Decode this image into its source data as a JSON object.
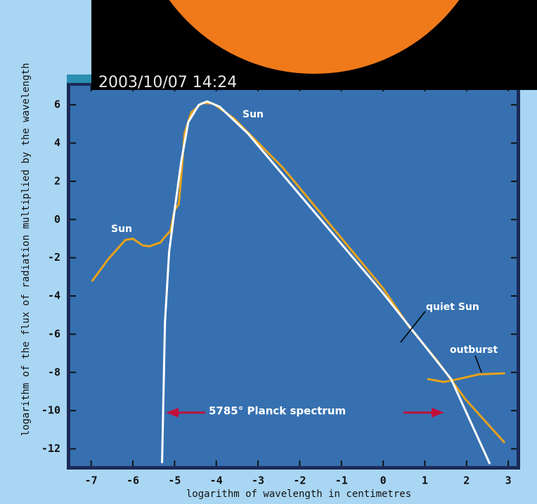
{
  "chart_data": {
    "type": "line",
    "timestamp": "2003/10/07 14:24",
    "xlabel": "logarithm of wavelength in centimetres",
    "ylabel": "logarithm of the flux of radiation multiplied by the wavelength",
    "annotations": [
      "Sun",
      "Sun"
    ],
    "xlim": [
      -7.5,
      3.2
    ],
    "ylim": [
      -12.9,
      7.0
    ],
    "xticks": [
      -7,
      -6,
      -5,
      -4,
      -3,
      -2,
      -1,
      0,
      1,
      2,
      3
    ],
    "yticks": [
      -12,
      -10,
      -8,
      -6,
      -4,
      -2,
      0,
      2,
      4,
      6
    ],
    "series": [
      {
        "name": "quiet Sun",
        "color": "#e8a219",
        "x": [
          -6.97,
          -6.6,
          -6.18,
          -6.0,
          -5.76,
          -5.6,
          -5.34,
          -5.23,
          -5.1,
          -5.0,
          -4.9,
          -4.84,
          -4.76,
          -4.6,
          -4.34,
          -4.08,
          -3.58,
          -2.4,
          0,
          0.62,
          1.3,
          1.97,
          2.9
        ],
        "values": [
          -3.2,
          -2.1,
          -1.07,
          -1.0,
          -1.36,
          -1.4,
          -1.2,
          -0.9,
          -0.6,
          0.5,
          0.8,
          2.3,
          4.5,
          5.6,
          6.1,
          6.07,
          5.3,
          2.7,
          -3.6,
          -5.6,
          -7.4,
          -9.4,
          -11.65
        ]
      },
      {
        "name": "outburst",
        "color": "#e8a219",
        "x": [
          1.08,
          1.46,
          1.8,
          2.3,
          2.9
        ],
        "values": [
          -8.35,
          -8.5,
          -8.35,
          -8.1,
          -8.05
        ]
      },
      {
        "name": "5785° Planck spectrum",
        "color": "#ffffff",
        "x": [
          -5.3,
          -5.23,
          -5.13,
          -5.0,
          -4.84,
          -4.67,
          -4.42,
          -4.22,
          -3.92,
          -3.24,
          0,
          1.63,
          2.55
        ],
        "values": [
          -12.7,
          -5.4,
          -1.7,
          0.5,
          3.05,
          5.1,
          6.0,
          6.18,
          5.9,
          4.5,
          -3.86,
          -8.35,
          -12.75
        ]
      }
    ]
  }
}
